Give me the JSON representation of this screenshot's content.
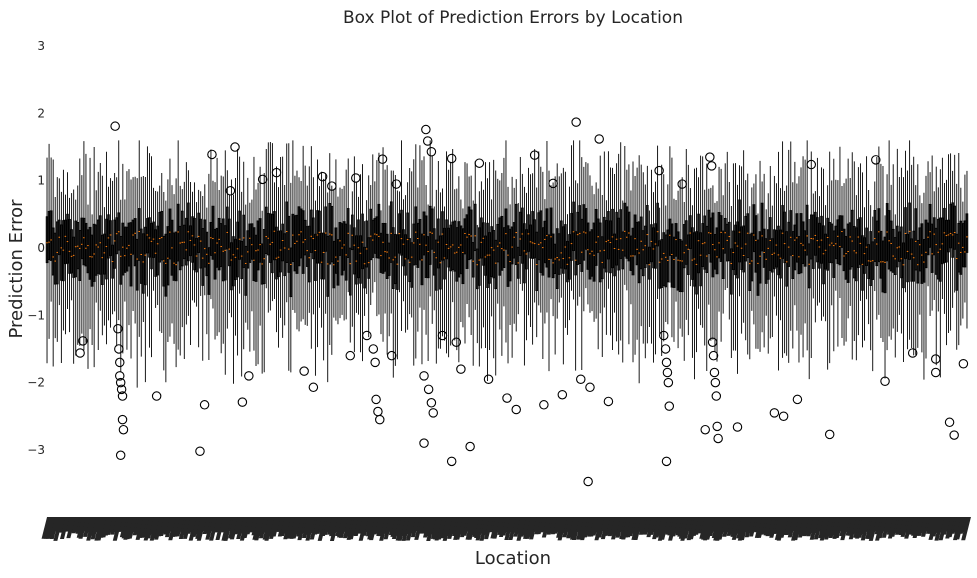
{
  "chart_data": {
    "type": "box",
    "title": "Box Plot of Prediction Errors by Location",
    "xlabel": "Location",
    "ylabel": "Prediction Error",
    "y_ticks": [
      3,
      2,
      1,
      0,
      -1,
      -2,
      -3
    ],
    "ylim": [
      -3.6,
      3.2
    ],
    "grid": false,
    "legend": "none",
    "categories_count": 450,
    "categories_note_legible": false,
    "box_color": "#000000",
    "median_color": "#ff7f0e",
    "flier_marker": "open-circle",
    "median_range": [
      -0.25,
      0.25
    ],
    "q1_typical": -0.35,
    "q3_typical": 0.35,
    "whisker_low_typical": -1.1,
    "whisker_high_typical": 1.0,
    "outliers": [
      {
        "x": 0.037,
        "y": -1.56
      },
      {
        "x": 0.04,
        "y": -1.38
      },
      {
        "x": 0.075,
        "y": 1.81
      },
      {
        "x": 0.078,
        "y": -1.2
      },
      {
        "x": 0.079,
        "y": -1.5
      },
      {
        "x": 0.08,
        "y": -1.7
      },
      {
        "x": 0.08,
        "y": -1.9
      },
      {
        "x": 0.081,
        "y": -2.0
      },
      {
        "x": 0.082,
        "y": -2.1
      },
      {
        "x": 0.083,
        "y": -2.2
      },
      {
        "x": 0.083,
        "y": -2.55
      },
      {
        "x": 0.084,
        "y": -2.7
      },
      {
        "x": 0.081,
        "y": -3.08
      },
      {
        "x": 0.12,
        "y": -2.2
      },
      {
        "x": 0.167,
        "y": -3.02
      },
      {
        "x": 0.172,
        "y": -2.33
      },
      {
        "x": 0.18,
        "y": 1.39
      },
      {
        "x": 0.2,
        "y": 0.85
      },
      {
        "x": 0.205,
        "y": 1.5
      },
      {
        "x": 0.213,
        "y": -2.29
      },
      {
        "x": 0.22,
        "y": -1.9
      },
      {
        "x": 0.235,
        "y": 1.02
      },
      {
        "x": 0.25,
        "y": 1.12
      },
      {
        "x": 0.28,
        "y": -1.83
      },
      {
        "x": 0.29,
        "y": -2.07
      },
      {
        "x": 0.3,
        "y": 1.06
      },
      {
        "x": 0.31,
        "y": 0.92
      },
      {
        "x": 0.33,
        "y": -1.6
      },
      {
        "x": 0.336,
        "y": 1.04
      },
      {
        "x": 0.348,
        "y": -1.3
      },
      {
        "x": 0.355,
        "y": -1.5
      },
      {
        "x": 0.357,
        "y": -1.7
      },
      {
        "x": 0.358,
        "y": -2.25
      },
      {
        "x": 0.36,
        "y": -2.43
      },
      {
        "x": 0.362,
        "y": -2.55
      },
      {
        "x": 0.365,
        "y": 1.32
      },
      {
        "x": 0.375,
        "y": -1.6
      },
      {
        "x": 0.38,
        "y": 0.95
      },
      {
        "x": 0.41,
        "y": -1.9
      },
      {
        "x": 0.412,
        "y": 1.76
      },
      {
        "x": 0.414,
        "y": 1.59
      },
      {
        "x": 0.418,
        "y": 1.43
      },
      {
        "x": 0.41,
        "y": -2.9
      },
      {
        "x": 0.415,
        "y": -2.1
      },
      {
        "x": 0.418,
        "y": -2.3
      },
      {
        "x": 0.42,
        "y": -2.45
      },
      {
        "x": 0.43,
        "y": -1.3
      },
      {
        "x": 0.44,
        "y": 1.33
      },
      {
        "x": 0.44,
        "y": -3.17
      },
      {
        "x": 0.445,
        "y": -1.4
      },
      {
        "x": 0.45,
        "y": -1.8
      },
      {
        "x": 0.46,
        "y": -2.95
      },
      {
        "x": 0.47,
        "y": 1.26
      },
      {
        "x": 0.48,
        "y": -1.95
      },
      {
        "x": 0.5,
        "y": -2.23
      },
      {
        "x": 0.51,
        "y": -2.4
      },
      {
        "x": 0.53,
        "y": 1.38
      },
      {
        "x": 0.54,
        "y": -2.33
      },
      {
        "x": 0.55,
        "y": 0.96
      },
      {
        "x": 0.56,
        "y": -2.18
      },
      {
        "x": 0.575,
        "y": 1.87
      },
      {
        "x": 0.58,
        "y": -1.95
      },
      {
        "x": 0.59,
        "y": -2.07
      },
      {
        "x": 0.588,
        "y": -3.47
      },
      {
        "x": 0.6,
        "y": 1.62
      },
      {
        "x": 0.61,
        "y": -2.28
      },
      {
        "x": 0.665,
        "y": 1.15
      },
      {
        "x": 0.67,
        "y": -1.3
      },
      {
        "x": 0.672,
        "y": -1.5
      },
      {
        "x": 0.673,
        "y": -1.7
      },
      {
        "x": 0.674,
        "y": -1.85
      },
      {
        "x": 0.675,
        "y": -2.0
      },
      {
        "x": 0.676,
        "y": -2.35
      },
      {
        "x": 0.673,
        "y": -3.17
      },
      {
        "x": 0.69,
        "y": 0.95
      },
      {
        "x": 0.715,
        "y": -2.7
      },
      {
        "x": 0.72,
        "y": 1.35
      },
      {
        "x": 0.722,
        "y": 1.22
      },
      {
        "x": 0.723,
        "y": -1.4
      },
      {
        "x": 0.724,
        "y": -1.6
      },
      {
        "x": 0.725,
        "y": -1.85
      },
      {
        "x": 0.726,
        "y": -2.0
      },
      {
        "x": 0.727,
        "y": -2.2
      },
      {
        "x": 0.728,
        "y": -2.65
      },
      {
        "x": 0.729,
        "y": -2.83
      },
      {
        "x": 0.75,
        "y": -2.66
      },
      {
        "x": 0.79,
        "y": -2.45
      },
      {
        "x": 0.8,
        "y": -2.5
      },
      {
        "x": 0.815,
        "y": -2.25
      },
      {
        "x": 0.83,
        "y": 1.24
      },
      {
        "x": 0.85,
        "y": -2.77
      },
      {
        "x": 0.9,
        "y": 1.31
      },
      {
        "x": 0.91,
        "y": -1.98
      },
      {
        "x": 0.94,
        "y": -1.56
      },
      {
        "x": 0.965,
        "y": -1.65
      },
      {
        "x": 0.965,
        "y": -1.85
      },
      {
        "x": 0.98,
        "y": -2.59
      },
      {
        "x": 0.985,
        "y": -2.78
      },
      {
        "x": 0.995,
        "y": -1.72
      }
    ]
  }
}
